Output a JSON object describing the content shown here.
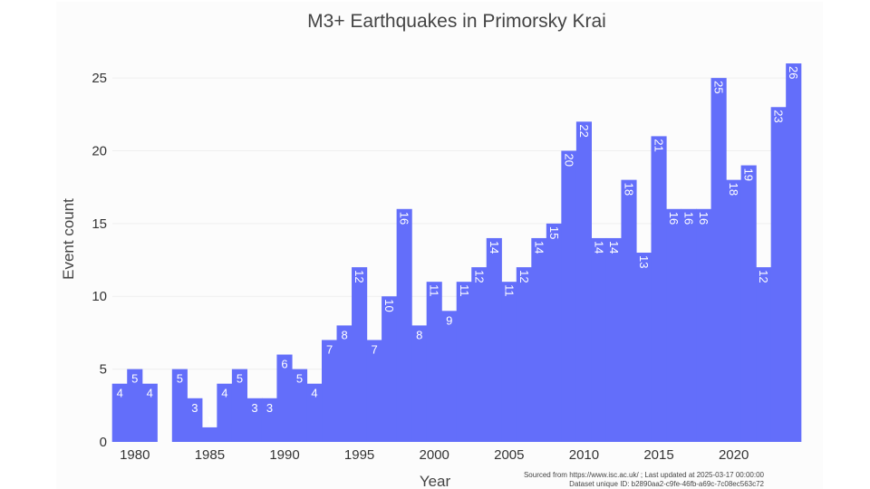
{
  "chart_data": {
    "type": "bar",
    "title": "M3+ Earthquakes in Primorsky Krai",
    "xlabel": "Year",
    "ylabel": "Event count",
    "x": [
      1979,
      1980,
      1981,
      1982,
      1983,
      1984,
      1985,
      1986,
      1987,
      1988,
      1989,
      1990,
      1991,
      1992,
      1993,
      1994,
      1995,
      1996,
      1997,
      1998,
      1999,
      2000,
      2001,
      2002,
      2003,
      2004,
      2005,
      2006,
      2007,
      2008,
      2009,
      2010,
      2011,
      2012,
      2013,
      2014,
      2015,
      2016,
      2017,
      2018,
      2019,
      2020,
      2021,
      2022,
      2023,
      2024
    ],
    "values": [
      4,
      5,
      4,
      0,
      5,
      3,
      1,
      4,
      5,
      3,
      3,
      6,
      5,
      4,
      7,
      8,
      12,
      7,
      10,
      16,
      8,
      11,
      9,
      11,
      12,
      14,
      11,
      12,
      14,
      15,
      20,
      22,
      14,
      14,
      18,
      13,
      21,
      16,
      16,
      16,
      25,
      18,
      19,
      12,
      23,
      26
    ],
    "labels": [
      "4",
      "5",
      "4",
      "",
      "5",
      "3",
      "1",
      "4",
      "5",
      "3",
      "3",
      "6",
      "5",
      "4",
      "7",
      "8",
      "12",
      "7",
      "10",
      "16",
      "8",
      "11",
      "9",
      "11",
      "12",
      "14",
      "11",
      "12",
      "14",
      "15",
      "20",
      "22",
      "14",
      "14",
      "18",
      "13",
      "21",
      "16",
      "16",
      "16",
      "25",
      "18",
      "19",
      "12",
      "23",
      "26"
    ],
    "xticks": [
      1980,
      1985,
      1990,
      1995,
      2000,
      2005,
      2010,
      2015,
      2020
    ],
    "xtick_labels": [
      "1980",
      "1985",
      "1990",
      "1995",
      "2000",
      "2005",
      "2010",
      "2015",
      "2020"
    ],
    "yticks": [
      0,
      5,
      10,
      15,
      20,
      25
    ],
    "ytick_labels": [
      "0",
      "5",
      "10",
      "15",
      "20",
      "25"
    ],
    "ylim": [
      0,
      26.5
    ],
    "xlim": [
      1978.5,
      2024.5
    ],
    "grid": true,
    "bar_color": "#636efa",
    "label_color": "#ffffff",
    "source_line1": "Sourced from https://www.isc.ac.uk/ ; Last updated at 2025-03-17 00:00:00",
    "source_line2": "Dataset unique ID: b2890aa2-c9fe-46fb-a69c-7c08ec563c72"
  }
}
